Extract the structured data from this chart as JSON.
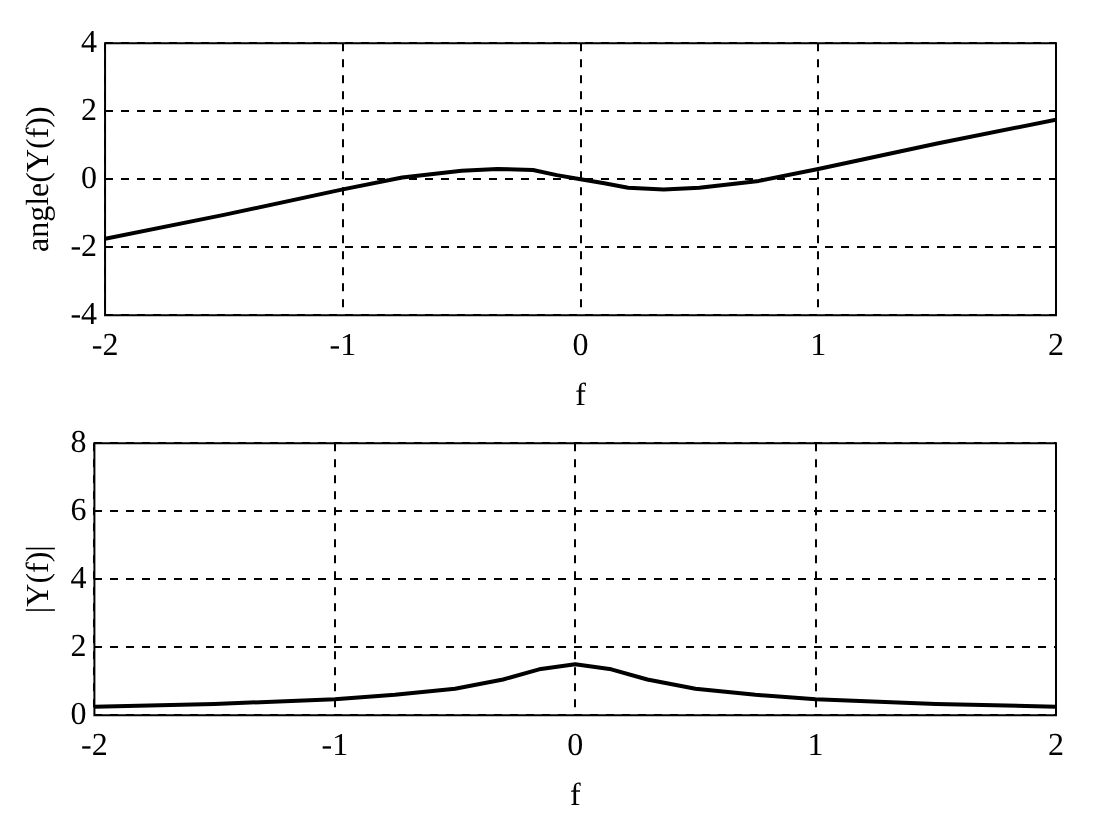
{
  "chart_data": [
    {
      "type": "line",
      "xlabel": "f",
      "ylabel": "angle(Y(f))",
      "x": [
        -2,
        -1.5,
        -1,
        -0.75,
        -0.5,
        -0.35,
        -0.2,
        -0.1,
        0,
        0.1,
        0.2,
        0.35,
        0.5,
        0.75,
        1,
        1.5,
        2
      ],
      "values": [
        -1.75,
        -1.05,
        -0.3,
        0.05,
        0.25,
        0.3,
        0.27,
        0.12,
        0,
        -0.12,
        -0.25,
        -0.3,
        -0.25,
        -0.05,
        0.3,
        1.05,
        1.75
      ],
      "color": "#000000",
      "xlim": [
        -2,
        2
      ],
      "xticks": [
        -2,
        -1,
        0,
        1,
        2
      ],
      "ylim": [
        -4,
        4
      ],
      "yticks": [
        -4,
        -2,
        0,
        2,
        4
      ],
      "grid": true
    },
    {
      "type": "line",
      "xlabel": "f",
      "ylabel": "|Y(f)|",
      "x": [
        -2,
        -1.5,
        -1,
        -0.75,
        -0.5,
        -0.3,
        -0.15,
        0,
        0.15,
        0.3,
        0.5,
        0.75,
        1,
        1.5,
        2
      ],
      "values": [
        0.25,
        0.33,
        0.47,
        0.6,
        0.78,
        1.05,
        1.35,
        1.5,
        1.35,
        1.05,
        0.78,
        0.6,
        0.47,
        0.33,
        0.25
      ],
      "color": "#000000",
      "xlim": [
        -2,
        2
      ],
      "xticks": [
        -2,
        -1,
        0,
        1,
        2
      ],
      "ylim": [
        0,
        8
      ],
      "yticks": [
        0,
        2,
        4,
        6,
        8
      ],
      "grid": true
    }
  ]
}
